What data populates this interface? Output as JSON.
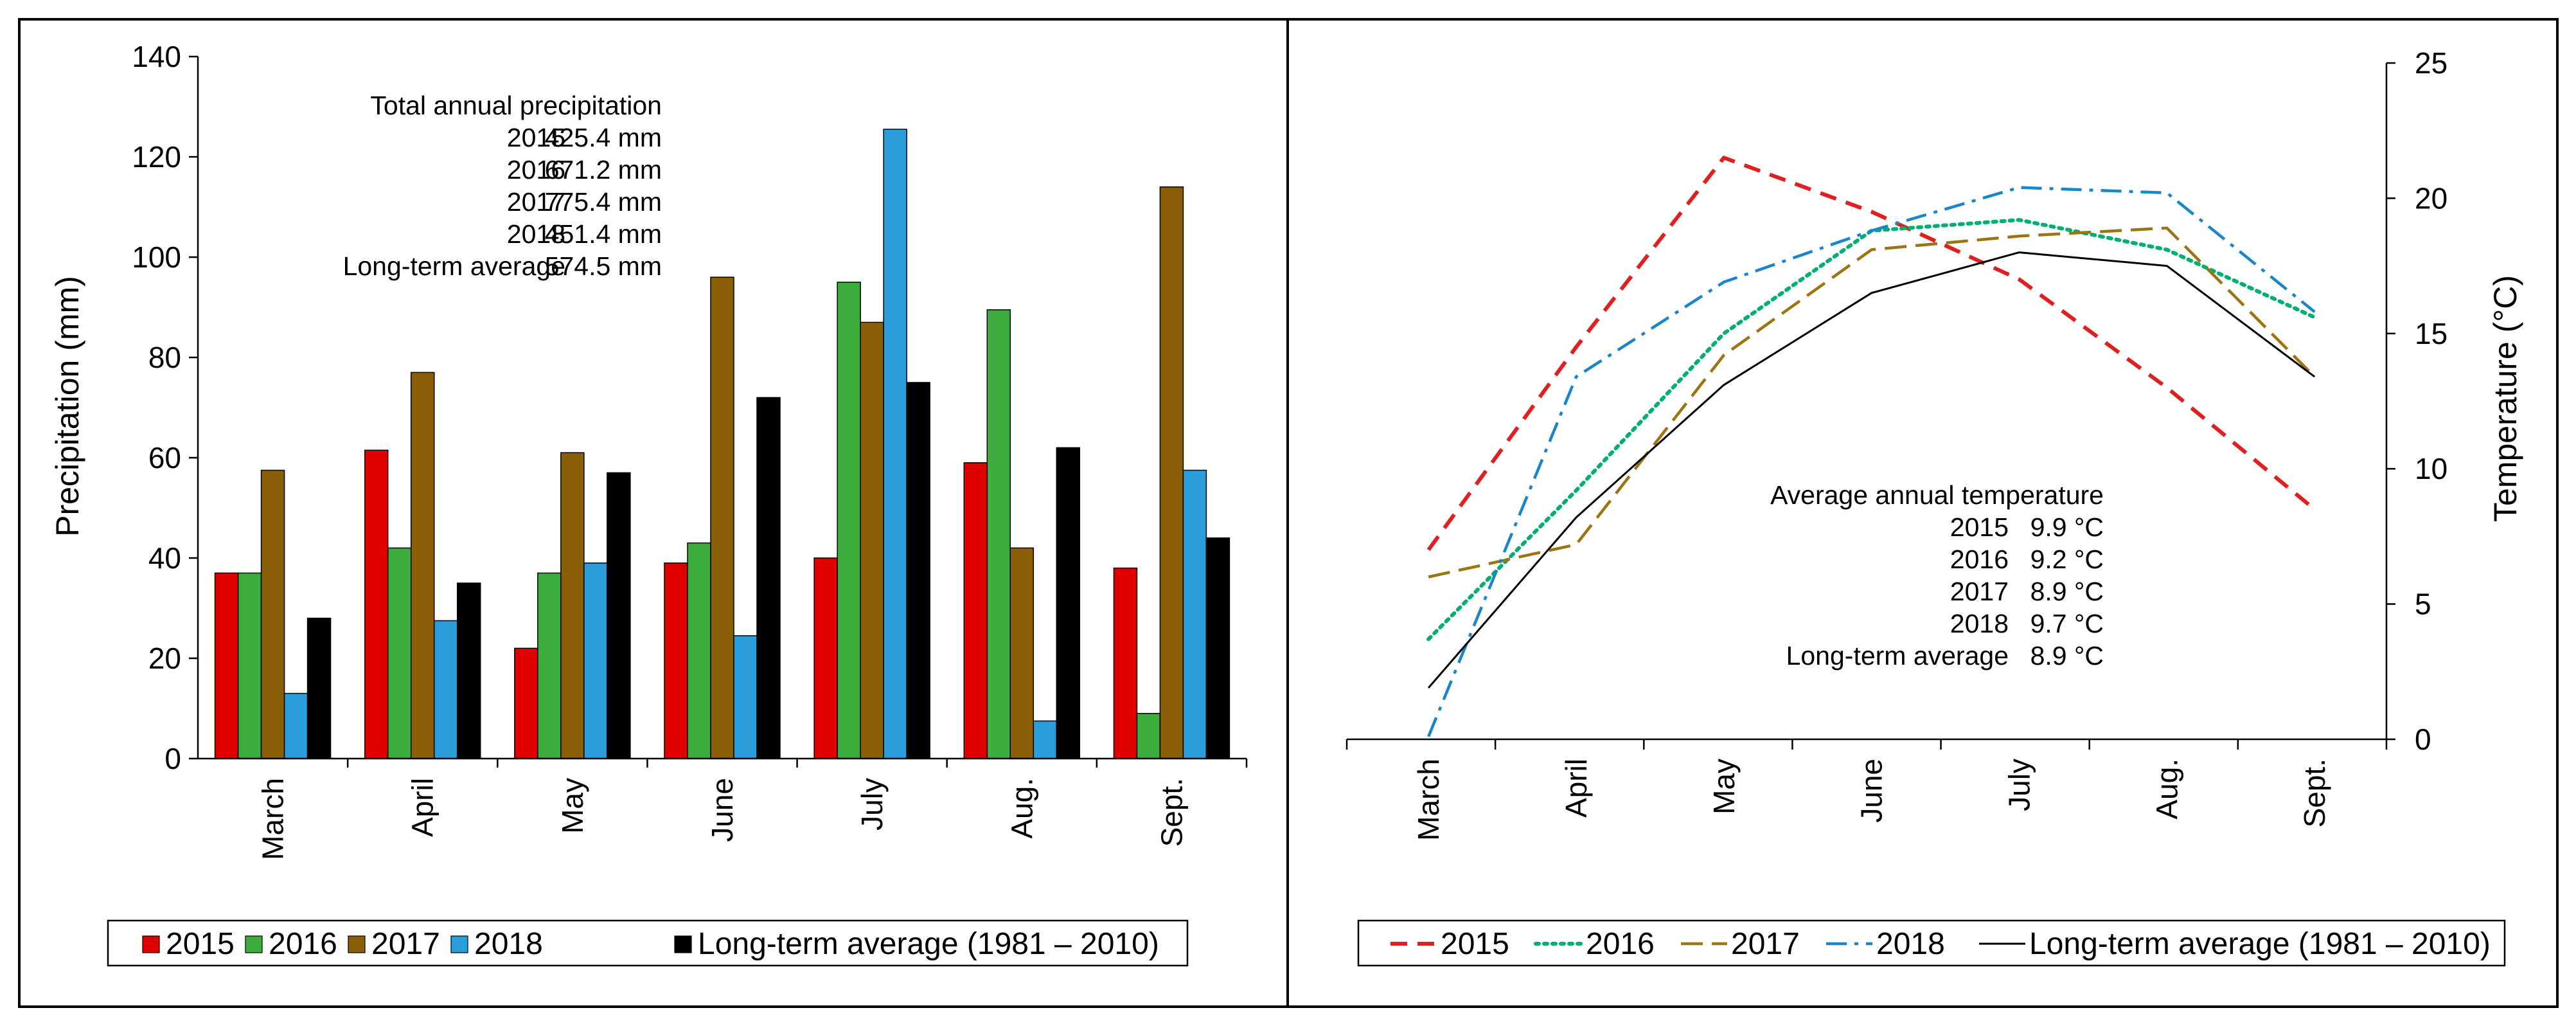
{
  "chart_data": [
    {
      "type": "bar",
      "ylabel": "Precipitation (mm)",
      "ylim": [
        0,
        140
      ],
      "yticks": [
        0,
        20,
        40,
        60,
        80,
        100,
        120,
        140
      ],
      "categories": [
        "March",
        "April",
        "May",
        "June",
        "July",
        "Aug.",
        "Sept."
      ],
      "series": [
        {
          "name": "2015",
          "color": "#e00000",
          "values": [
            37,
            61.5,
            22,
            39,
            40,
            59,
            38
          ]
        },
        {
          "name": "2016",
          "color": "#3cac3c",
          "values": [
            37,
            42,
            37,
            43,
            95,
            89.5,
            9
          ]
        },
        {
          "name": "2017",
          "color": "#8b5e08",
          "values": [
            57.5,
            77,
            61,
            96,
            87,
            42,
            114
          ]
        },
        {
          "name": "2018",
          "color": "#2a9edb",
          "values": [
            13,
            27.5,
            39,
            24.5,
            125.5,
            7.5,
            57.5
          ]
        },
        {
          "name": "Long-term average (1981 – 2010)",
          "color": "#000000",
          "values": [
            28,
            35,
            57,
            72,
            75,
            62,
            44
          ]
        }
      ],
      "annotation": {
        "title": "Total annual precipitation",
        "rows": [
          {
            "label": "2015",
            "value": "425.4 mm"
          },
          {
            "label": "2016",
            "value": "671.2 mm"
          },
          {
            "label": "2017",
            "value": "775.4 mm"
          },
          {
            "label": "2018",
            "value": "451.4 mm"
          },
          {
            "label": "Long-term average",
            "value": "574.5 mm"
          }
        ]
      },
      "legend_position": "bottom"
    },
    {
      "type": "line",
      "ylabel": "Temperature (°C)",
      "ylim": [
        0,
        25
      ],
      "yticks": [
        0,
        5,
        10,
        15,
        20,
        25
      ],
      "y_axis_side": "right",
      "categories": [
        "March",
        "April",
        "May",
        "June",
        "July",
        "Aug.",
        "Sept."
      ],
      "series": [
        {
          "name": "2015",
          "color": "#e02020",
          "dash": "dashed",
          "values": [
            7,
            14.5,
            21.5,
            19.5,
            17,
            13,
            8.5
          ]
        },
        {
          "name": "2016",
          "color": "#00b070",
          "dash": "dotted",
          "values": [
            3.7,
            9.2,
            15,
            18.8,
            19.2,
            18.1,
            15.6
          ]
        },
        {
          "name": "2017",
          "color": "#9c7410",
          "dash": "longdash",
          "values": [
            6,
            7.2,
            14.2,
            18.1,
            18.6,
            18.9,
            13.4
          ]
        },
        {
          "name": "2018",
          "color": "#1a86c8",
          "dash": "dashdot",
          "values": [
            0.1,
            13.4,
            16.9,
            18.8,
            20.4,
            20.2,
            15.8
          ]
        },
        {
          "name": "Long-term average (1981 – 2010)",
          "color": "#000000",
          "dash": "solid",
          "values": [
            1.9,
            8.2,
            13.1,
            16.5,
            18,
            17.5,
            13.4
          ]
        }
      ],
      "annotation": {
        "title": "Average annual temperature",
        "rows": [
          {
            "label": "2015",
            "value": "9.9 °C"
          },
          {
            "label": "2016",
            "value": "9.2 °C"
          },
          {
            "label": "2017",
            "value": "8.9 °C"
          },
          {
            "label": "2018",
            "value": "9.7 °C"
          },
          {
            "label": "Long-term average",
            "value": "8.9 °C"
          }
        ]
      },
      "legend_position": "bottom"
    }
  ]
}
